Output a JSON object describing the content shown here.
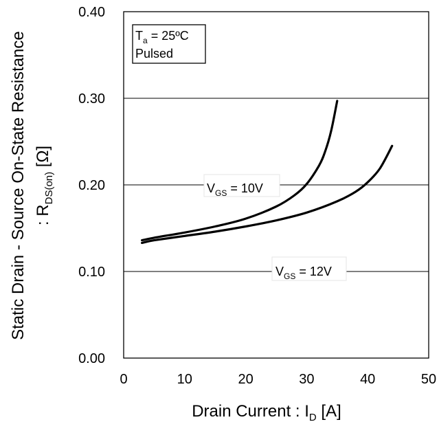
{
  "chart_data": {
    "type": "line",
    "xlabel": {
      "main": "Drain Current : I",
      "sub": "D",
      "unit": " [A]"
    },
    "ylabel": {
      "line1": "Static Drain - Source On-State Resistance",
      "line2_main": ": R",
      "line2_sub": "DS(on)",
      "line2_unit": " [Ω]"
    },
    "xlim": [
      0,
      50
    ],
    "ylim": [
      0,
      0.4
    ],
    "xticks": [
      "0",
      "10",
      "20",
      "30",
      "40",
      "50"
    ],
    "yticks": [
      "0.00",
      "0.10",
      "0.20",
      "0.30",
      "0.40"
    ],
    "grid": "horizontal",
    "condition_box": {
      "line1_main": "T",
      "line1_sub": "a",
      "line1_rest": " = 25ºC",
      "line2": "Pulsed"
    },
    "series": [
      {
        "name": "V_GS = 10V",
        "label": {
          "main": "V",
          "sub": "GS",
          "rest": " = 10V"
        },
        "x": [
          3,
          5,
          10,
          15,
          20,
          25,
          28,
          30,
          32,
          33,
          34,
          35
        ],
        "y": [
          0.136,
          0.139,
          0.145,
          0.152,
          0.161,
          0.175,
          0.188,
          0.201,
          0.222,
          0.238,
          0.262,
          0.297
        ]
      },
      {
        "name": "V_GS = 12V",
        "label": {
          "main": "V",
          "sub": "GS",
          "rest": " = 12V"
        },
        "x": [
          3,
          5,
          10,
          15,
          20,
          25,
          30,
          35,
          38,
          40,
          42,
          44
        ],
        "y": [
          0.133,
          0.136,
          0.141,
          0.146,
          0.152,
          0.159,
          0.168,
          0.181,
          0.192,
          0.203,
          0.219,
          0.245
        ]
      }
    ]
  }
}
